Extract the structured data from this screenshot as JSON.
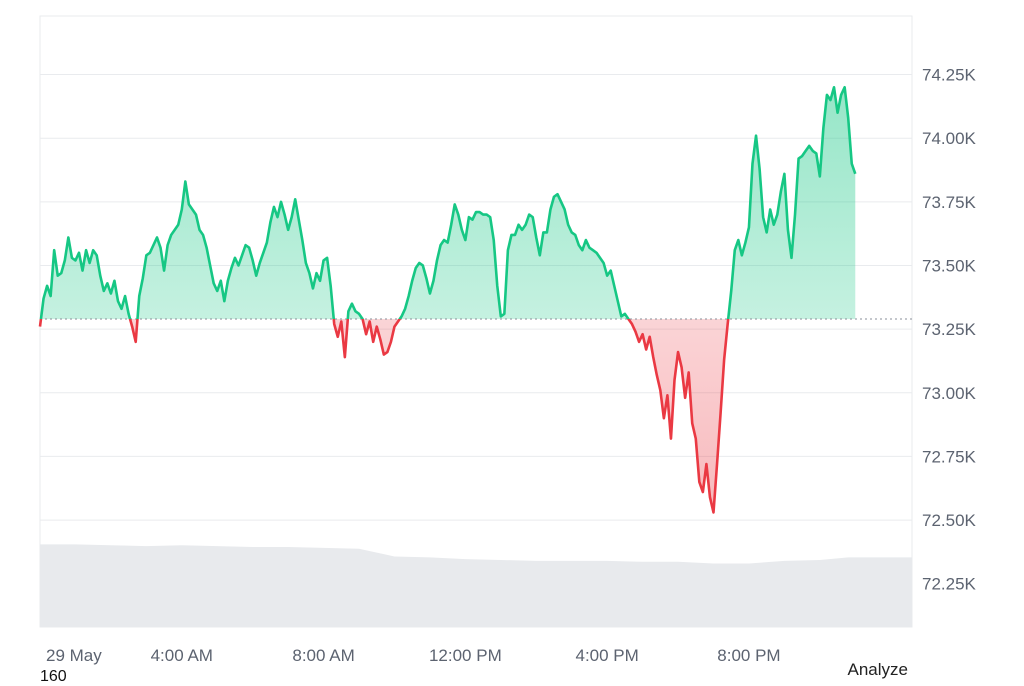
{
  "chart_data": {
    "type": "area",
    "reference_value": 73.29,
    "ylim": [
      72.08,
      74.48
    ],
    "y_ticks": [
      {
        "value": 74.25,
        "label": "74.25K"
      },
      {
        "value": 74.0,
        "label": "74.00K"
      },
      {
        "value": 73.75,
        "label": "73.75K"
      },
      {
        "value": 73.5,
        "label": "73.50K"
      },
      {
        "value": 73.25,
        "label": "73.25K"
      },
      {
        "value": 73.0,
        "label": "73.00K"
      },
      {
        "value": 72.75,
        "label": "72.75K"
      },
      {
        "value": 72.5,
        "label": "72.50K"
      },
      {
        "value": 72.25,
        "label": "72.25K"
      }
    ],
    "x_ticks": [
      {
        "hour": 0.2,
        "label": "29 May"
      },
      {
        "hour": 4,
        "label": "4:00 AM"
      },
      {
        "hour": 8,
        "label": "8:00 AM"
      },
      {
        "hour": 12,
        "label": "12:00 PM"
      },
      {
        "hour": 16,
        "label": "4:00 PM"
      },
      {
        "hour": 20,
        "label": "8:00 PM"
      }
    ],
    "x_range_hours": [
      0,
      24.6
    ],
    "series": [
      {
        "values": [
          [
            0.0,
            73.26
          ],
          [
            0.1,
            73.37
          ],
          [
            0.2,
            73.42
          ],
          [
            0.3,
            73.38
          ],
          [
            0.4,
            73.56
          ],
          [
            0.5,
            73.46
          ],
          [
            0.6,
            73.47
          ],
          [
            0.7,
            73.52
          ],
          [
            0.8,
            73.61
          ],
          [
            0.9,
            73.53
          ],
          [
            1.0,
            73.52
          ],
          [
            1.1,
            73.55
          ],
          [
            1.2,
            73.48
          ],
          [
            1.3,
            73.56
          ],
          [
            1.4,
            73.51
          ],
          [
            1.5,
            73.56
          ],
          [
            1.6,
            73.54
          ],
          [
            1.7,
            73.46
          ],
          [
            1.8,
            73.4
          ],
          [
            1.9,
            73.43
          ],
          [
            2.0,
            73.39
          ],
          [
            2.1,
            73.44
          ],
          [
            2.2,
            73.36
          ],
          [
            2.3,
            73.33
          ],
          [
            2.4,
            73.38
          ],
          [
            2.5,
            73.31
          ],
          [
            2.6,
            73.26
          ],
          [
            2.7,
            73.2
          ],
          [
            2.8,
            73.38
          ],
          [
            2.9,
            73.45
          ],
          [
            3.0,
            73.54
          ],
          [
            3.1,
            73.55
          ],
          [
            3.2,
            73.58
          ],
          [
            3.3,
            73.61
          ],
          [
            3.4,
            73.57
          ],
          [
            3.5,
            73.48
          ],
          [
            3.6,
            73.58
          ],
          [
            3.7,
            73.62
          ],
          [
            3.8,
            73.64
          ],
          [
            3.9,
            73.66
          ],
          [
            4.0,
            73.72
          ],
          [
            4.1,
            73.83
          ],
          [
            4.2,
            73.74
          ],
          [
            4.3,
            73.72
          ],
          [
            4.4,
            73.7
          ],
          [
            4.5,
            73.64
          ],
          [
            4.6,
            73.62
          ],
          [
            4.7,
            73.57
          ],
          [
            4.8,
            73.5
          ],
          [
            4.9,
            73.43
          ],
          [
            5.0,
            73.4
          ],
          [
            5.1,
            73.44
          ],
          [
            5.2,
            73.36
          ],
          [
            5.3,
            73.44
          ],
          [
            5.4,
            73.49
          ],
          [
            5.5,
            73.53
          ],
          [
            5.6,
            73.5
          ],
          [
            5.7,
            73.54
          ],
          [
            5.8,
            73.58
          ],
          [
            5.9,
            73.57
          ],
          [
            6.0,
            73.52
          ],
          [
            6.1,
            73.46
          ],
          [
            6.2,
            73.51
          ],
          [
            6.3,
            73.55
          ],
          [
            6.4,
            73.59
          ],
          [
            6.5,
            73.67
          ],
          [
            6.6,
            73.73
          ],
          [
            6.7,
            73.69
          ],
          [
            6.8,
            73.75
          ],
          [
            6.9,
            73.7
          ],
          [
            7.0,
            73.64
          ],
          [
            7.1,
            73.69
          ],
          [
            7.2,
            73.76
          ],
          [
            7.3,
            73.68
          ],
          [
            7.4,
            73.6
          ],
          [
            7.5,
            73.51
          ],
          [
            7.6,
            73.47
          ],
          [
            7.7,
            73.41
          ],
          [
            7.8,
            73.47
          ],
          [
            7.9,
            73.44
          ],
          [
            8.0,
            73.52
          ],
          [
            8.1,
            73.53
          ],
          [
            8.2,
            73.42
          ],
          [
            8.3,
            73.27
          ],
          [
            8.4,
            73.22
          ],
          [
            8.5,
            73.28
          ],
          [
            8.6,
            73.14
          ],
          [
            8.7,
            73.32
          ],
          [
            8.8,
            73.35
          ],
          [
            8.9,
            73.32
          ],
          [
            9.0,
            73.31
          ],
          [
            9.1,
            73.29
          ],
          [
            9.2,
            73.23
          ],
          [
            9.3,
            73.28
          ],
          [
            9.4,
            73.2
          ],
          [
            9.5,
            73.26
          ],
          [
            9.6,
            73.21
          ],
          [
            9.7,
            73.15
          ],
          [
            9.8,
            73.16
          ],
          [
            9.9,
            73.2
          ],
          [
            10.0,
            73.26
          ],
          [
            10.1,
            73.28
          ],
          [
            10.2,
            73.3
          ],
          [
            10.3,
            73.33
          ],
          [
            10.4,
            73.38
          ],
          [
            10.5,
            73.44
          ],
          [
            10.6,
            73.49
          ],
          [
            10.7,
            73.51
          ],
          [
            10.8,
            73.5
          ],
          [
            10.9,
            73.45
          ],
          [
            11.0,
            73.39
          ],
          [
            11.1,
            73.44
          ],
          [
            11.2,
            73.52
          ],
          [
            11.3,
            73.58
          ],
          [
            11.4,
            73.6
          ],
          [
            11.5,
            73.59
          ],
          [
            11.6,
            73.66
          ],
          [
            11.7,
            73.74
          ],
          [
            11.8,
            73.7
          ],
          [
            11.9,
            73.64
          ],
          [
            12.0,
            73.6
          ],
          [
            12.1,
            73.69
          ],
          [
            12.2,
            73.68
          ],
          [
            12.3,
            73.71
          ],
          [
            12.4,
            73.71
          ],
          [
            12.5,
            73.7
          ],
          [
            12.6,
            73.7
          ],
          [
            12.7,
            73.69
          ],
          [
            12.8,
            73.6
          ],
          [
            12.9,
            73.42
          ],
          [
            13.0,
            73.3
          ],
          [
            13.1,
            73.31
          ],
          [
            13.2,
            73.56
          ],
          [
            13.3,
            73.62
          ],
          [
            13.4,
            73.62
          ],
          [
            13.5,
            73.66
          ],
          [
            13.6,
            73.64
          ],
          [
            13.7,
            73.66
          ],
          [
            13.8,
            73.7
          ],
          [
            13.9,
            73.69
          ],
          [
            14.0,
            73.61
          ],
          [
            14.1,
            73.54
          ],
          [
            14.2,
            73.63
          ],
          [
            14.3,
            73.63
          ],
          [
            14.4,
            73.72
          ],
          [
            14.5,
            73.77
          ],
          [
            14.6,
            73.78
          ],
          [
            14.7,
            73.75
          ],
          [
            14.8,
            73.72
          ],
          [
            14.9,
            73.66
          ],
          [
            15.0,
            73.63
          ],
          [
            15.1,
            73.62
          ],
          [
            15.2,
            73.58
          ],
          [
            15.3,
            73.56
          ],
          [
            15.4,
            73.6
          ],
          [
            15.5,
            73.57
          ],
          [
            15.6,
            73.56
          ],
          [
            15.7,
            73.55
          ],
          [
            15.8,
            73.53
          ],
          [
            15.9,
            73.51
          ],
          [
            16.0,
            73.46
          ],
          [
            16.1,
            73.48
          ],
          [
            16.2,
            73.42
          ],
          [
            16.3,
            73.36
          ],
          [
            16.4,
            73.3
          ],
          [
            16.5,
            73.31
          ],
          [
            16.6,
            73.29
          ],
          [
            16.7,
            73.27
          ],
          [
            16.8,
            73.24
          ],
          [
            16.9,
            73.2
          ],
          [
            17.0,
            73.23
          ],
          [
            17.1,
            73.17
          ],
          [
            17.2,
            73.22
          ],
          [
            17.3,
            73.14
          ],
          [
            17.4,
            73.07
          ],
          [
            17.5,
            73.01
          ],
          [
            17.6,
            72.9
          ],
          [
            17.7,
            72.99
          ],
          [
            17.8,
            72.82
          ],
          [
            17.9,
            73.05
          ],
          [
            18.0,
            73.16
          ],
          [
            18.1,
            73.1
          ],
          [
            18.2,
            72.98
          ],
          [
            18.3,
            73.08
          ],
          [
            18.4,
            72.88
          ],
          [
            18.5,
            72.82
          ],
          [
            18.6,
            72.65
          ],
          [
            18.7,
            72.61
          ],
          [
            18.8,
            72.72
          ],
          [
            18.9,
            72.59
          ],
          [
            19.0,
            72.53
          ],
          [
            19.1,
            72.72
          ],
          [
            19.2,
            72.92
          ],
          [
            19.3,
            73.13
          ],
          [
            19.4,
            73.27
          ],
          [
            19.5,
            73.4
          ],
          [
            19.6,
            73.56
          ],
          [
            19.7,
            73.6
          ],
          [
            19.8,
            73.54
          ],
          [
            19.9,
            73.59
          ],
          [
            20.0,
            73.65
          ],
          [
            20.1,
            73.9
          ],
          [
            20.2,
            74.01
          ],
          [
            20.3,
            73.88
          ],
          [
            20.4,
            73.69
          ],
          [
            20.5,
            73.63
          ],
          [
            20.6,
            73.72
          ],
          [
            20.7,
            73.66
          ],
          [
            20.8,
            73.7
          ],
          [
            20.9,
            73.79
          ],
          [
            21.0,
            73.86
          ],
          [
            21.1,
            73.64
          ],
          [
            21.2,
            73.53
          ],
          [
            21.3,
            73.7
          ],
          [
            21.4,
            73.92
          ],
          [
            21.5,
            73.93
          ],
          [
            21.6,
            73.95
          ],
          [
            21.7,
            73.97
          ],
          [
            21.8,
            73.95
          ],
          [
            21.9,
            73.94
          ],
          [
            22.0,
            73.85
          ],
          [
            22.1,
            74.04
          ],
          [
            22.2,
            74.17
          ],
          [
            22.3,
            74.15
          ],
          [
            22.4,
            74.2
          ],
          [
            22.5,
            74.1
          ],
          [
            22.6,
            74.17
          ],
          [
            22.7,
            74.2
          ],
          [
            22.8,
            74.08
          ],
          [
            22.9,
            73.9
          ],
          [
            23.0,
            73.86
          ]
        ]
      }
    ],
    "volume": {
      "values": [
        [
          0.0,
          0.95
        ],
        [
          1.0,
          0.95
        ],
        [
          2.0,
          0.94
        ],
        [
          3.0,
          0.93
        ],
        [
          4.0,
          0.94
        ],
        [
          5.0,
          0.93
        ],
        [
          6.0,
          0.92
        ],
        [
          7.0,
          0.92
        ],
        [
          8.0,
          0.91
        ],
        [
          9.0,
          0.9
        ],
        [
          10.0,
          0.81
        ],
        [
          11.0,
          0.8
        ],
        [
          12.0,
          0.78
        ],
        [
          13.0,
          0.77
        ],
        [
          14.0,
          0.76
        ],
        [
          15.0,
          0.76
        ],
        [
          16.0,
          0.76
        ],
        [
          17.0,
          0.75
        ],
        [
          18.0,
          0.75
        ],
        [
          19.0,
          0.73
        ],
        [
          20.0,
          0.73
        ],
        [
          21.0,
          0.76
        ],
        [
          22.0,
          0.77
        ],
        [
          22.8,
          0.8
        ],
        [
          23.0,
          0.8
        ]
      ]
    }
  },
  "footer": {
    "analyze_label": "Analyze",
    "corner_text": "160"
  },
  "colors": {
    "up": "#16c784",
    "down": "#ea3943",
    "grid": "#e9ebee",
    "volume": "#e8eaed"
  }
}
